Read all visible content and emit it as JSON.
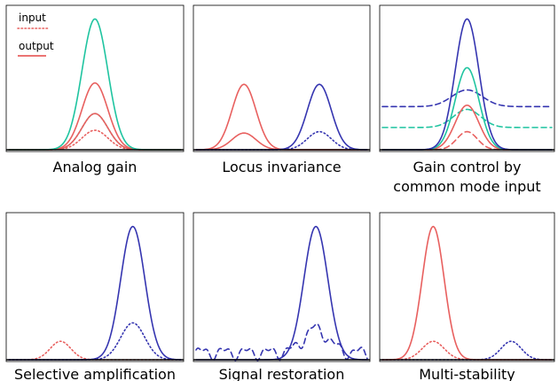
{
  "legend": {
    "input_label": "input",
    "output_label": "output"
  },
  "colors": {
    "red": "#e8605f",
    "teal": "#1fc4a0",
    "blue": "#3535b0",
    "frame": "#000000"
  },
  "panels": [
    {
      "caption_lines": [
        "Analog gain"
      ],
      "curves": [
        {
          "color": "red",
          "style": "dotted",
          "bumps": [
            {
              "center": 0.5,
              "width": 0.075,
              "height": 0.14
            }
          ]
        },
        {
          "color": "teal",
          "style": "dotted",
          "bumps": [
            {
              "center": 0.5,
              "width": 0.075,
              "height": 0.26
            }
          ]
        },
        {
          "color": "red",
          "style": "solid",
          "bumps": [
            {
              "center": 0.5,
              "width": 0.075,
              "height": 0.26
            }
          ]
        },
        {
          "color": "red",
          "style": "solid",
          "bumps": [
            {
              "center": 0.5,
              "width": 0.075,
              "height": 0.48
            }
          ]
        },
        {
          "color": "teal",
          "style": "solid",
          "bumps": [
            {
              "center": 0.5,
              "width": 0.075,
              "height": 0.94
            }
          ]
        }
      ]
    },
    {
      "caption_lines": [
        "Locus invariance"
      ],
      "curves": [
        {
          "color": "red",
          "style": "solid",
          "bumps": [
            {
              "center": 0.28,
              "width": 0.07,
              "height": 0.12
            }
          ]
        },
        {
          "color": "red",
          "style": "solid",
          "bumps": [
            {
              "center": 0.28,
              "width": 0.07,
              "height": 0.47
            }
          ]
        },
        {
          "color": "blue",
          "style": "dotted",
          "bumps": [
            {
              "center": 0.72,
              "width": 0.07,
              "height": 0.13
            }
          ]
        },
        {
          "color": "blue",
          "style": "solid",
          "bumps": [
            {
              "center": 0.72,
              "width": 0.07,
              "height": 0.47
            }
          ]
        }
      ]
    },
    {
      "caption_lines": [
        "Gain control by",
        "common mode input"
      ],
      "curves": [
        {
          "color": "blue",
          "style": "dashed",
          "offset": 0.31,
          "bumps": [
            {
              "center": 0.5,
              "width": 0.09,
              "height": 0.12
            }
          ]
        },
        {
          "color": "teal",
          "style": "dashed",
          "offset": 0.16,
          "bumps": [
            {
              "center": 0.5,
              "width": 0.08,
              "height": 0.13
            }
          ]
        },
        {
          "color": "red",
          "style": "dashed",
          "offset": 0.0,
          "bumps": [
            {
              "center": 0.5,
              "width": 0.06,
              "height": 0.13
            }
          ]
        },
        {
          "color": "red",
          "style": "solid",
          "offset": 0.0,
          "bumps": [
            {
              "center": 0.5,
              "width": 0.07,
              "height": 0.32
            }
          ]
        },
        {
          "color": "teal",
          "style": "solid",
          "offset": 0.0,
          "bumps": [
            {
              "center": 0.5,
              "width": 0.07,
              "height": 0.59
            }
          ]
        },
        {
          "color": "blue",
          "style": "solid",
          "offset": 0.0,
          "bumps": [
            {
              "center": 0.5,
              "width": 0.07,
              "height": 0.94
            }
          ]
        }
      ]
    },
    {
      "caption_lines": [
        "Selective amplification"
      ],
      "curves": [
        {
          "color": "red",
          "style": "dotted",
          "bumps": [
            {
              "center": 0.3,
              "width": 0.06,
              "height": 0.13
            }
          ]
        },
        {
          "color": "blue",
          "style": "dotted",
          "bumps": [
            {
              "center": 0.72,
              "width": 0.07,
              "height": 0.26
            }
          ]
        },
        {
          "color": "blue",
          "style": "solid",
          "bumps": [
            {
              "center": 0.72,
              "width": 0.07,
              "height": 0.94
            }
          ]
        }
      ]
    },
    {
      "caption_lines": [
        "Signal restoration"
      ],
      "curves": [
        {
          "color": "blue",
          "style": "dashed",
          "noise": true,
          "bumps": [
            {
              "center": 0.7,
              "width": 0.07,
              "height": 0.17
            }
          ]
        },
        {
          "color": "blue",
          "style": "solid",
          "bumps": [
            {
              "center": 0.7,
              "width": 0.07,
              "height": 0.94
            }
          ]
        }
      ]
    },
    {
      "caption_lines": [
        "Multi-stability"
      ],
      "curves": [
        {
          "color": "red",
          "style": "dotted",
          "bumps": [
            {
              "center": 0.3,
              "width": 0.065,
              "height": 0.13
            }
          ]
        },
        {
          "color": "blue",
          "style": "dotted",
          "bumps": [
            {
              "center": 0.76,
              "width": 0.06,
              "height": 0.13
            }
          ]
        },
        {
          "color": "red",
          "style": "solid",
          "bumps": [
            {
              "center": 0.3,
              "width": 0.065,
              "height": 0.94
            }
          ]
        }
      ]
    }
  ]
}
